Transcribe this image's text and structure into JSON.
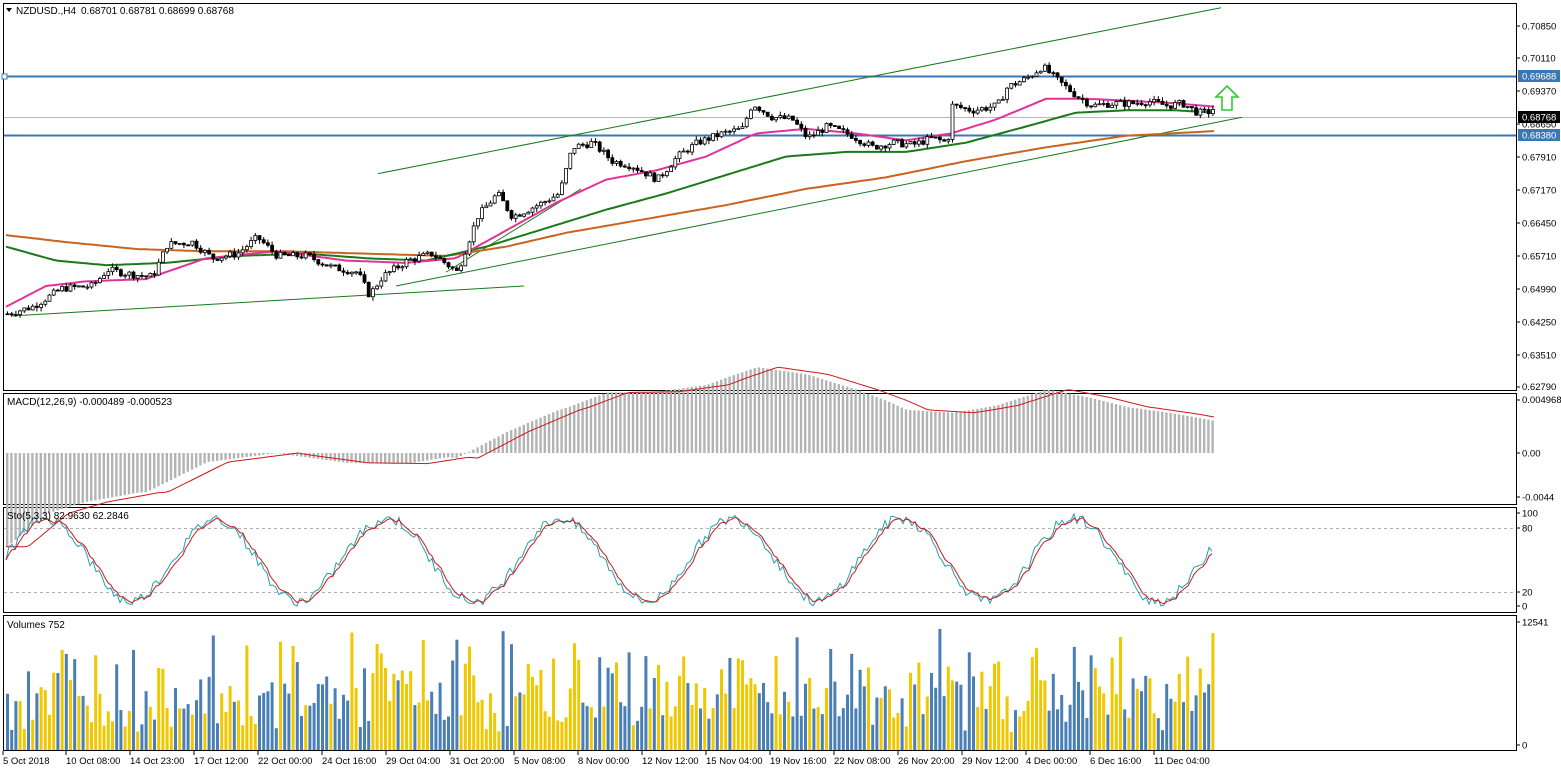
{
  "header": {
    "symbol": "NZDUSD.,H4",
    "ohlc": "0.68701 0.68781 0.68699 0.68768"
  },
  "price_axis": {
    "ticks": [
      "0.70850",
      "0.70110",
      "0.69370",
      "0.68650",
      "0.67910",
      "0.67170",
      "0.66450",
      "0.65710",
      "0.64990",
      "0.64250",
      "0.63510",
      "0.62790"
    ]
  },
  "price_labels": {
    "resistance": "0.69688",
    "current": "0.68768",
    "support": "0.68380"
  },
  "macd": {
    "title": "MACD(12,26,9) -0.000489 -0.000523",
    "ticks": [
      "0.004968",
      "0.00",
      "-0.0044"
    ]
  },
  "stoch": {
    "title": "Sto(5,3,3) 82.9630 62.2846",
    "ticks": [
      "100",
      "80",
      "20",
      "0"
    ]
  },
  "volumes": {
    "title": "Volumes 752",
    "ticks": [
      "12541",
      "0"
    ]
  },
  "time_axis": {
    "labels": [
      "5 Oct 2018",
      "10 Oct 08:00",
      "14 Oct 23:00",
      "17 Oct 12:00",
      "22 Oct 00:00",
      "24 Oct 16:00",
      "29 Oct 04:00",
      "31 Oct 20:00",
      "5 Nov 08:00",
      "8 Nov 00:00",
      "12 Nov 12:00",
      "15 Nov 04:00",
      "19 Nov 16:00",
      "22 Nov 08:00",
      "26 Nov 20:00",
      "29 Nov 12:00",
      "4 Dec 00:00",
      "6 Dec 16:00",
      "11 Dec 04:00"
    ]
  },
  "colors": {
    "bull_volume": "#f0c800",
    "bear_volume": "#4a7fb5",
    "ma_fast": "#e0339a",
    "ma_mid": "#1a7a1a",
    "ma_slow": "#c8641e",
    "hline": "#3a78b5",
    "signal_arrow": "#2ecc2e",
    "macd_signal": "#d01818",
    "stoch_main": "#22a0b0",
    "stoch_signal": "#d01818"
  },
  "chart_data": {
    "type": "candlestick",
    "symbol": "NZDUSD.",
    "timeframe": "H4",
    "price_range": [
      0.6265,
      0.71
    ],
    "horizontal_levels": [
      0.69688,
      0.6838
    ],
    "current_price": 0.68768,
    "close_path": [
      [
        0,
        0.643
      ],
      [
        25,
        0.6445
      ],
      [
        55,
        0.6485
      ],
      [
        85,
        0.649
      ],
      [
        100,
        0.6525
      ],
      [
        125,
        0.6515
      ],
      [
        145,
        0.651
      ],
      [
        160,
        0.658
      ],
      [
        185,
        0.6585
      ],
      [
        205,
        0.655
      ],
      [
        230,
        0.656
      ],
      [
        250,
        0.6595
      ],
      [
        270,
        0.6555
      ],
      [
        300,
        0.6555
      ],
      [
        325,
        0.653
      ],
      [
        350,
        0.652
      ],
      [
        362,
        0.647
      ],
      [
        375,
        0.651
      ],
      [
        400,
        0.6545
      ],
      [
        425,
        0.656
      ],
      [
        450,
        0.652
      ],
      [
        470,
        0.664
      ],
      [
        490,
        0.669
      ],
      [
        505,
        0.664
      ],
      [
        535,
        0.667
      ],
      [
        552,
        0.669
      ],
      [
        565,
        0.679
      ],
      [
        585,
        0.68
      ],
      [
        605,
        0.676
      ],
      [
        625,
        0.675
      ],
      [
        650,
        0.672
      ],
      [
        670,
        0.677
      ],
      [
        690,
        0.68
      ],
      [
        715,
        0.682
      ],
      [
        735,
        0.683
      ],
      [
        745,
        0.6885
      ],
      [
        765,
        0.6855
      ],
      [
        785,
        0.685
      ],
      [
        800,
        0.681
      ],
      [
        820,
        0.6835
      ],
      [
        845,
        0.6815
      ],
      [
        865,
        0.679
      ],
      [
        885,
        0.68
      ],
      [
        905,
        0.6795
      ],
      [
        925,
        0.681
      ],
      [
        940,
        0.68
      ],
      [
        945,
        0.688
      ],
      [
        965,
        0.687
      ],
      [
        990,
        0.688
      ],
      [
        1000,
        0.692
      ],
      [
        1020,
        0.694
      ],
      [
        1035,
        0.6965
      ],
      [
        1050,
        0.6935
      ],
      [
        1070,
        0.69
      ],
      [
        1085,
        0.688
      ],
      [
        1105,
        0.6885
      ],
      [
        1125,
        0.6885
      ],
      [
        1140,
        0.689
      ],
      [
        1160,
        0.688
      ],
      [
        1175,
        0.6885
      ],
      [
        1190,
        0.6865
      ],
      [
        1200,
        0.6865
      ],
      [
        1208,
        0.6877
      ]
    ],
    "ma_fast": [
      [
        0,
        0.6445
      ],
      [
        40,
        0.649
      ],
      [
        80,
        0.65
      ],
      [
        140,
        0.6505
      ],
      [
        200,
        0.655
      ],
      [
        270,
        0.6565
      ],
      [
        340,
        0.6545
      ],
      [
        400,
        0.654
      ],
      [
        450,
        0.655
      ],
      [
        500,
        0.661
      ],
      [
        550,
        0.667
      ],
      [
        600,
        0.672
      ],
      [
        650,
        0.674
      ],
      [
        700,
        0.677
      ],
      [
        750,
        0.682
      ],
      [
        800,
        0.683
      ],
      [
        850,
        0.682
      ],
      [
        900,
        0.6805
      ],
      [
        945,
        0.682
      ],
      [
        990,
        0.685
      ],
      [
        1040,
        0.6895
      ],
      [
        1080,
        0.6895
      ],
      [
        1130,
        0.689
      ],
      [
        1170,
        0.6885
      ],
      [
        1208,
        0.6878
      ]
    ],
    "ma_mid": [
      [
        0,
        0.6575
      ],
      [
        50,
        0.6545
      ],
      [
        100,
        0.6535
      ],
      [
        160,
        0.654
      ],
      [
        230,
        0.6555
      ],
      [
        300,
        0.656
      ],
      [
        360,
        0.655
      ],
      [
        420,
        0.6545
      ],
      [
        480,
        0.6575
      ],
      [
        540,
        0.6615
      ],
      [
        600,
        0.6655
      ],
      [
        660,
        0.669
      ],
      [
        720,
        0.673
      ],
      [
        780,
        0.677
      ],
      [
        840,
        0.678
      ],
      [
        900,
        0.678
      ],
      [
        960,
        0.68
      ],
      [
        1020,
        0.6835
      ],
      [
        1070,
        0.6865
      ],
      [
        1120,
        0.687
      ],
      [
        1170,
        0.687
      ],
      [
        1208,
        0.6865
      ]
    ],
    "ma_slow": [
      [
        0,
        0.66
      ],
      [
        60,
        0.6585
      ],
      [
        130,
        0.657
      ],
      [
        200,
        0.6565
      ],
      [
        280,
        0.6565
      ],
      [
        360,
        0.656
      ],
      [
        440,
        0.6555
      ],
      [
        500,
        0.6575
      ],
      [
        560,
        0.6605
      ],
      [
        640,
        0.6635
      ],
      [
        720,
        0.6665
      ],
      [
        800,
        0.67
      ],
      [
        880,
        0.6725
      ],
      [
        960,
        0.676
      ],
      [
        1040,
        0.679
      ],
      [
        1120,
        0.6815
      ],
      [
        1208,
        0.6825
      ]
    ],
    "trendlines": [
      {
        "from": [
          5,
          0.6425
        ],
        "to": [
          518,
          0.649
        ]
      },
      {
        "from": [
          390,
          0.649
        ],
        "to": [
          1236,
          0.6855
        ]
      },
      {
        "from": [
          372,
          0.6733
        ],
        "to": [
          1215,
          0.7092
        ]
      },
      {
        "from": [
          440,
          0.652
        ],
        "to": [
          575,
          0.67
        ]
      }
    ]
  }
}
